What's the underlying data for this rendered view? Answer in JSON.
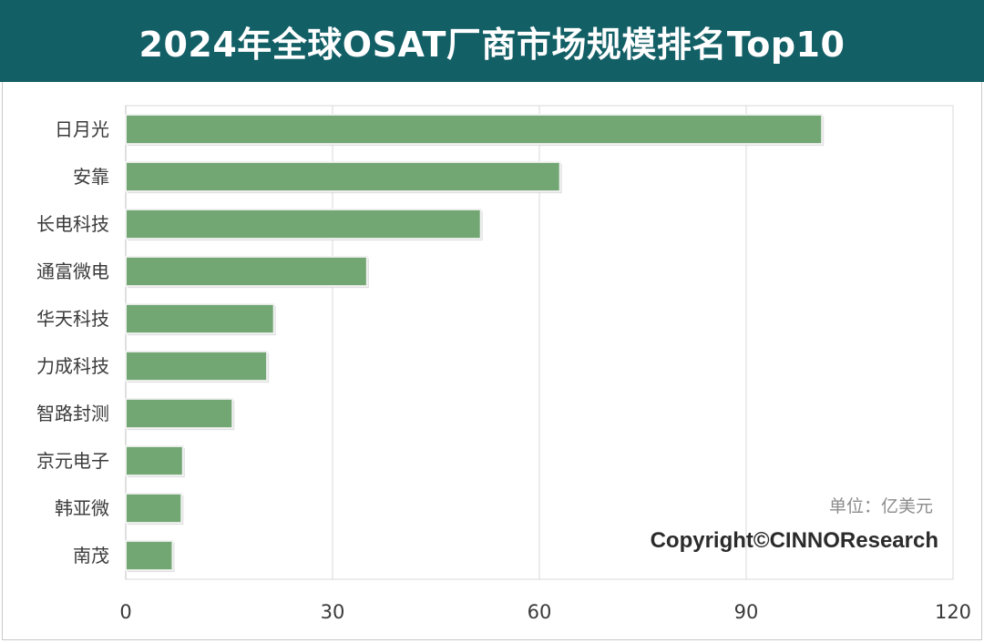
{
  "title": "2024年全球OSAT厂商市场规模排名Top10",
  "unit_note": "单位：亿美元",
  "copyright": "Copyright©CINNOResearch",
  "colors": {
    "title_bg": "#135f66",
    "bar": "#72a673",
    "grid": "#d9d9d9"
  },
  "chart_data": {
    "type": "bar",
    "orientation": "horizontal",
    "title": "2024年全球OSAT厂商市场规模排名Top10",
    "categories": [
      "日月光",
      "安靠",
      "长电科技",
      "通富微电",
      "华天科技",
      "力成科技",
      "智路封测",
      "京元电子",
      "韩亚微",
      "南茂"
    ],
    "values": [
      101,
      63,
      51.5,
      35,
      21.5,
      20.5,
      15.5,
      8.3,
      8.1,
      6.8
    ],
    "xlim": [
      0,
      120
    ],
    "xticks": [
      "0",
      "30",
      "60",
      "90",
      "120"
    ],
    "xlabel": "",
    "ylabel": "",
    "grid": "vertical",
    "legend": "none"
  }
}
